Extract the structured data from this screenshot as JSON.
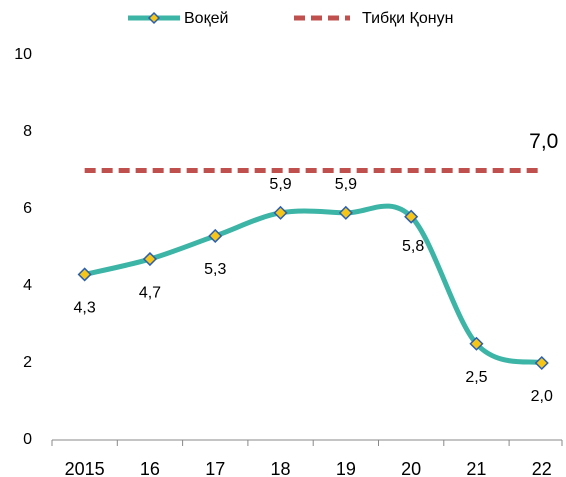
{
  "chart_data": {
    "type": "line",
    "categories": [
      "2015",
      "16",
      "17",
      "18",
      "19",
      "20",
      "21",
      "22"
    ],
    "series": [
      {
        "name": "Воқей",
        "color": "#3cb4a6",
        "values": [
          4.3,
          4.7,
          5.3,
          5.9,
          5.9,
          5.8,
          2.5,
          2.0
        ],
        "value_labels": [
          "4,3",
          "4,7",
          "5,3",
          "5,9",
          "5,9",
          "5,8",
          "2,5",
          "2,0"
        ]
      },
      {
        "name": "Тибқи Қонун",
        "color": "#c0504d",
        "values": [
          7.0,
          7.0,
          7.0,
          7.0,
          7.0,
          7.0,
          7.0,
          7.0
        ],
        "value_labels": [
          null,
          null,
          null,
          null,
          null,
          null,
          null,
          "7,0"
        ]
      }
    ],
    "ylim": [
      0,
      10
    ],
    "yticks": [
      0,
      2,
      4,
      6,
      8,
      10
    ],
    "grid": false,
    "legend": "top"
  }
}
